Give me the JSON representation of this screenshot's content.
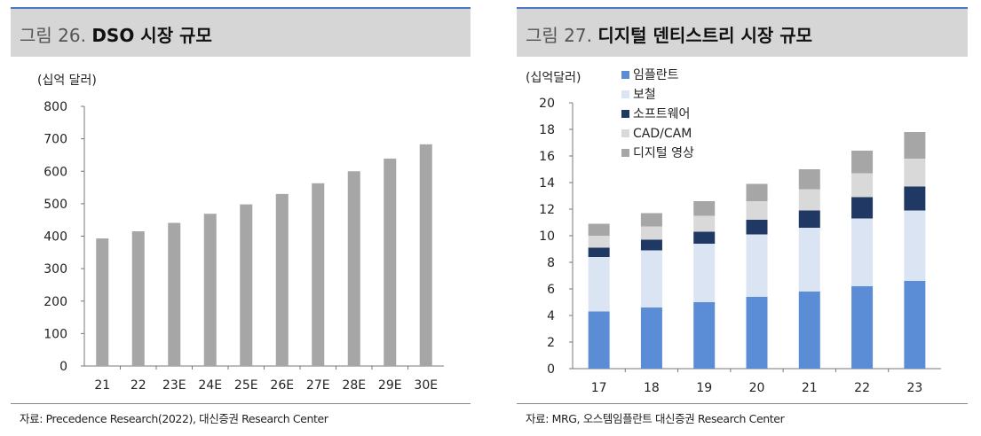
{
  "figures": {
    "left": {
      "number": "그림 26.",
      "title": "DSO 시장 규모",
      "source": "자료: Precedence Research(2022), 대신증권 Research Center"
    },
    "right": {
      "number": "그림 27.",
      "title": "디지털 덴티스트리 시장 규모",
      "source": "자료: MRG, 오스템임플란트 대신증권 Research Center"
    }
  },
  "colors": {
    "bar_gray": "#a6a6a6",
    "implant": "#5b8dd6",
    "prosthesis": "#dbe4f2",
    "software": "#1f3864",
    "cadcam": "#d9d9d9",
    "imaging": "#a6a6a6"
  },
  "chart_data": [
    {
      "type": "bar",
      "title": "DSO 시장 규모",
      "unit_label": "(십억 달러)",
      "categories": [
        "21",
        "22",
        "23E",
        "24E",
        "25E",
        "26E",
        "27E",
        "28E",
        "29E",
        "30E"
      ],
      "values": [
        393,
        415,
        441,
        469,
        498,
        530,
        563,
        600,
        639,
        683
      ],
      "ylim": [
        0,
        800
      ],
      "yticks": [
        "0",
        "100",
        "200",
        "300",
        "400",
        "500",
        "600",
        "700",
        "800"
      ],
      "grid": false,
      "legend": "none"
    },
    {
      "type": "bar",
      "stacked": true,
      "title": "디지털 덴티스트리 시장 규모",
      "unit_label": "(십억달러)",
      "categories": [
        "17",
        "18",
        "19",
        "20",
        "21",
        "22",
        "23"
      ],
      "series": [
        {
          "name": "임플란트",
          "values": [
            4.3,
            4.6,
            5.0,
            5.4,
            5.8,
            6.2,
            6.6
          ]
        },
        {
          "name": "보철",
          "values": [
            4.1,
            4.3,
            4.4,
            4.7,
            4.8,
            5.1,
            5.3
          ]
        },
        {
          "name": "소프트웨어",
          "values": [
            0.7,
            0.8,
            0.9,
            1.1,
            1.3,
            1.6,
            1.8
          ]
        },
        {
          "name": "CAD/CAM",
          "values": [
            0.9,
            1.0,
            1.2,
            1.4,
            1.6,
            1.8,
            2.1
          ]
        },
        {
          "name": "디지털 영상",
          "values": [
            0.9,
            1.0,
            1.1,
            1.3,
            1.5,
            1.7,
            2.0
          ]
        }
      ],
      "ylim": [
        0,
        20
      ],
      "yticks": [
        "0",
        "2",
        "4",
        "6",
        "8",
        "10",
        "12",
        "14",
        "16",
        "18",
        "20"
      ],
      "grid": false,
      "legend": "top-left"
    }
  ]
}
